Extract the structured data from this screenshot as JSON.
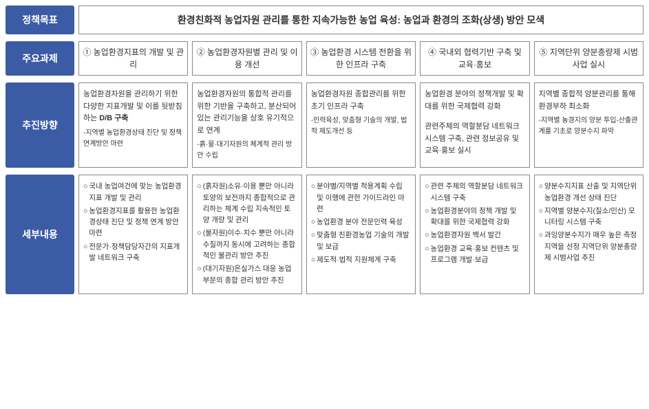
{
  "labels": {
    "goal": "정책목표",
    "tasks": "주요과제",
    "direction": "추진방향",
    "details": "세부내용"
  },
  "goal_text": "환경친화적 농업자원 관리를 통한 지속가능한 농업 육성: 농업과 환경의 조화(상생) 방안 모색",
  "tasks": [
    "① 농업환경지표의 개발 및 관리",
    "② 농업환경자원별 관리 및 이용 개선",
    "③ 농업환경 시스템 전환을 위한 인프라 구축",
    "④ 국내외 협력기반 구축 및 교육·홍보",
    "⑤ 지역단위 양분총량제 시범사업 실시"
  ],
  "directions": [
    {
      "main": "농업환경자원을 관리하기 위한 다양한 지표개발 및 이를 뒷받침하는",
      "bold": "D/B 구축",
      "sub": "-지역별 농업환경상태 진단 및 정책 연계방안 마련"
    },
    {
      "main": "농업환경자원의 통합적 관리를 위한 기반을 구축하고, 분산되어 있는 관리기능을 상호 유기적으로 연계",
      "bold": "",
      "sub": "-흙·물·대기자원의 체계적 관리 방안 수립"
    },
    {
      "main": "농업환경자원 종합관리를 위한 초기 인프라 구축",
      "bold": "",
      "sub": "-인력육성, 맞춤형 기술의 개발, 법적 제도개선 등"
    },
    {
      "main": "농업환경 분야의 정책개발 및 확대를 위한 국제협력 강화",
      "bold": "",
      "sub": "관련주체의 역할분담 네트워크 시스템 구축, 관련 정보공유 및 교육·홍보 실시",
      "sub_is_main": true
    },
    {
      "main": "지역별 종합적 양분관리를 통해 환경부하 최소화",
      "bold": "",
      "sub": "-지역별 농경지의 양분 투입-산출관계를 기초로 양분수지 파악"
    }
  ],
  "details": [
    [
      "국내 농업여건에 맞는 농업환경지표 개발 및 관리",
      "농업환경지표를 활용한 농업환경상태 진단 및 정책 연계 방안 마련",
      "전문가·정책담당자간의 지표개발 네트워크 구축"
    ],
    [
      "(흙자원)소유·이용 뿐만 아니라 토양의 보전까지 종합적으로 관리하는 체계 수립 지속적인 토양 개량 및 관리",
      "(물자원)이수·치수 뿐만 아니라 수질까지 동시에 고려하는 종합적인 물관리 방안 추진",
      "(대기자원)온실가스 대응 농업부문의 종합 관리 방안 추진"
    ],
    [
      "분야별/지역별 적용계획 수립 및 이행에 관한 가이드라인 마련",
      "농업환경 분야 전문인력 육성",
      "맞춤형 친환경농업 기술의 개발 및 보급",
      "제도적·법적 지원체계 구축"
    ],
    [
      "관련 주체의 역할분담 네트워크 시스템 구축",
      "농업환경분야의 정책 개발 및 확대를 위한 국제협력 강화",
      "농업환경자원 백서 발간",
      "농업환경 교육·홍보 컨텐츠 및 프로그램 개발·보급"
    ],
    [
      "양분수지지표 산출 및 지역단위 농업환경 개선 상태 진단",
      "지역별 양분수지(질소/인산) 모니터링 시스템 구축",
      "과잉양분수지가 매우 높은 측정지역을 선정 지역단위 양분총량제 시범사업 추진"
    ]
  ],
  "bullet": "○",
  "colors": {
    "label_bg": "#3b5ba5",
    "label_fg": "#ffffff",
    "border": "#888888",
    "text": "#333333"
  }
}
